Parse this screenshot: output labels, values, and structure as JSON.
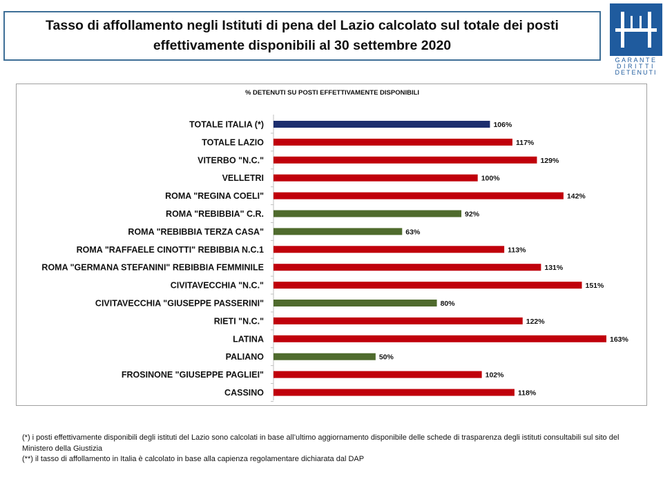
{
  "header": {
    "title_line1": "Tasso di affollamento negli Istituti di pena del Lazio calcolato sul totale dei posti",
    "title_line2": "effettivamente disponibili al 30 settembre 2020"
  },
  "logo": {
    "line1": "GARANTE",
    "line2": "DIRITTI",
    "line3": "DETENUTI",
    "color": "#1f5b9e"
  },
  "chart_data": {
    "type": "bar",
    "orientation": "horizontal",
    "title": "% DETENUTI SU POSTI EFFETTIVAMENTE DISPONIBILI",
    "categories": [
      "TOTALE ITALIA (*)",
      "TOTALE LAZIO",
      "VITERBO \"N.C.\"",
      "VELLETRI",
      "ROMA \"REGINA COELI\"",
      "ROMA \"REBIBBIA\" C.R.",
      "ROMA \"REBIBBIA TERZA CASA\"",
      "ROMA \"RAFFAELE CINOTTI\" REBIBBIA N.C.1",
      "ROMA \"GERMANA STEFANINI\" REBIBBIA FEMMINILE",
      "CIVITAVECCHIA \"N.C.\"",
      "CIVITAVECCHIA \"GIUSEPPE PASSERINI\"",
      "RIETI \"N.C.\"",
      "LATINA",
      "PALIANO",
      "FROSINONE \"GIUSEPPE PAGLIEI\"",
      "CASSINO"
    ],
    "values": [
      106,
      117,
      129,
      100,
      142,
      92,
      63,
      113,
      131,
      151,
      80,
      122,
      163,
      50,
      102,
      118
    ],
    "value_labels": [
      "106%",
      "117%",
      "129%",
      "100%",
      "142%",
      "92%",
      "63%",
      "113%",
      "131%",
      "151%",
      "80%",
      "122%",
      "163%",
      "50%",
      "102%",
      "118%"
    ],
    "bar_colors": [
      "#1c2e6e",
      "#c0000b",
      "#c0000b",
      "#c0000b",
      "#c0000b",
      "#4f6b2d",
      "#4f6b2d",
      "#c0000b",
      "#c0000b",
      "#c0000b",
      "#4f6b2d",
      "#c0000b",
      "#c0000b",
      "#4f6b2d",
      "#c0000b",
      "#c0000b"
    ],
    "xlim": [
      0,
      170
    ],
    "grid": false,
    "legend": false
  },
  "notes": [
    "(*) i posti effettivamente disponibili  degli istituti del Lazio sono  calcolati in base all’ultimo aggiornamento disponibile  delle schede di trasparenza degli istituti consultabili sul sito del Ministero della Giustizia",
    "(**) il tasso di affollamento  in Italia è calcolato in base alla capienza regolamentare dichiarata dal DAP"
  ]
}
